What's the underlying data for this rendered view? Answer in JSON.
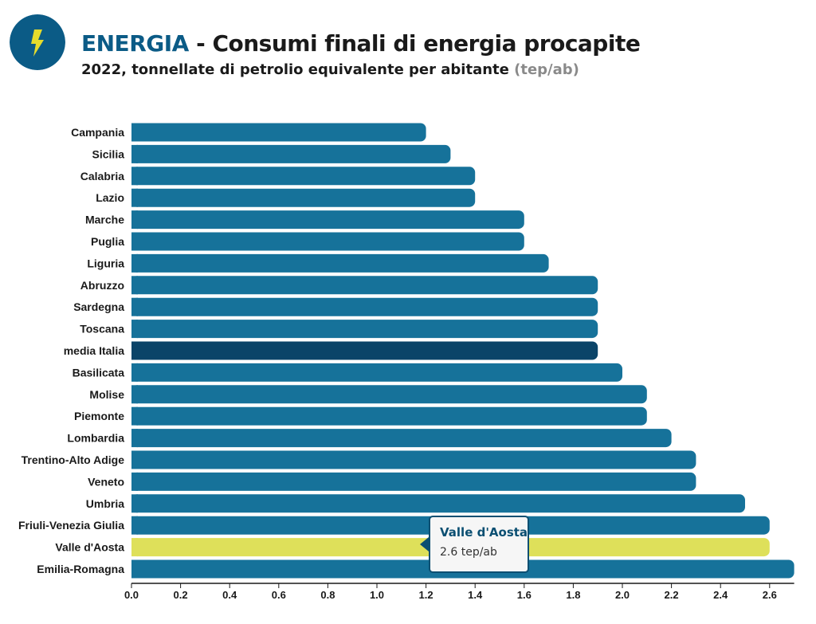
{
  "header": {
    "title_accent": "ENERGIA",
    "title_rest": " - Consumi finali di energia procapite",
    "subtitle_main": "2022, tonnellate di petrolio equivalente per abitante ",
    "subtitle_unit": "(tep/ab)"
  },
  "tooltip": {
    "title": "Valle d'Aosta",
    "value": "2.6 tep/ab"
  },
  "colors": {
    "bar": "#16729a",
    "average": "#0b4468",
    "highlight": "#dee05a",
    "logo": "#0b5b86",
    "bolt": "#e6dc2c"
  },
  "icons": {
    "logo": "lightning-bolt-icon"
  },
  "chart_data": {
    "type": "bar",
    "orientation": "horizontal",
    "categories": [
      "Campania",
      "Sicilia",
      "Calabria",
      "Lazio",
      "Marche",
      "Puglia",
      "Liguria",
      "Abruzzo",
      "Sardegna",
      "Toscana",
      "media Italia",
      "Basilicata",
      "Molise",
      "Piemonte",
      "Lombardia",
      "Trentino-Alto Adige",
      "Veneto",
      "Umbria",
      "Friuli-Venezia Giulia",
      "Valle d'Aosta",
      "Emilia-Romagna"
    ],
    "values": [
      1.2,
      1.3,
      1.4,
      1.4,
      1.6,
      1.6,
      1.7,
      1.9,
      1.9,
      1.9,
      1.9,
      2.0,
      2.1,
      2.1,
      2.2,
      2.3,
      2.3,
      2.5,
      2.6,
      2.6,
      2.7
    ],
    "average_category": "media Italia",
    "highlighted_category": "Valle d'Aosta",
    "xlim": [
      0,
      2.7
    ],
    "xticks": [
      "0.0",
      "0.2",
      "0.4",
      "0.6",
      "0.8",
      "1.0",
      "1.2",
      "1.4",
      "1.6",
      "1.8",
      "2.0",
      "2.2",
      "2.4",
      "2.6"
    ],
    "grid": false
  }
}
